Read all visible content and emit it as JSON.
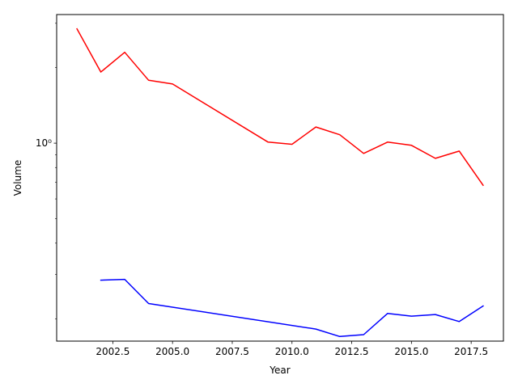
{
  "chart_data": {
    "type": "line",
    "title": "",
    "xlabel": "Year",
    "ylabel": "Volume",
    "y_scale": "log",
    "xlim": [
      2000.15,
      2018.85
    ],
    "ylim": [
      0.163,
      3.25
    ],
    "x_ticks": [
      2002.5,
      2005.0,
      2007.5,
      2010.0,
      2012.5,
      2015.0,
      2017.5
    ],
    "x_tick_labels": [
      "2002.5",
      "2005.0",
      "2007.5",
      "2010.0",
      "2012.5",
      "2015.0",
      "2017.5"
    ],
    "y_major_ticks": [
      1
    ],
    "y_major_tick_labels": [
      "10⁰"
    ],
    "y_minor_ticks": [
      0.2,
      0.3,
      0.4,
      0.5,
      0.6,
      0.7,
      0.8,
      0.9,
      2,
      3
    ],
    "grid": false,
    "legend": false,
    "series": [
      {
        "color": "#ff0000",
        "x": [
          2001,
          2002,
          2003,
          2004,
          2005,
          2009,
          2010,
          2011,
          2012,
          2013,
          2014,
          2015,
          2016,
          2017,
          2018
        ],
        "y": [
          2.85,
          1.92,
          2.3,
          1.78,
          1.72,
          1.01,
          0.99,
          1.16,
          1.08,
          0.91,
          1.01,
          0.98,
          0.87,
          0.93,
          0.68
        ]
      },
      {
        "color": "#0000ff",
        "x": [
          2002,
          2003,
          2004,
          2011,
          2012,
          2013,
          2014,
          2015,
          2016,
          2017,
          2018
        ],
        "y": [
          0.285,
          0.287,
          0.23,
          0.182,
          0.17,
          0.173,
          0.21,
          0.205,
          0.208,
          0.195,
          0.225
        ]
      }
    ]
  }
}
